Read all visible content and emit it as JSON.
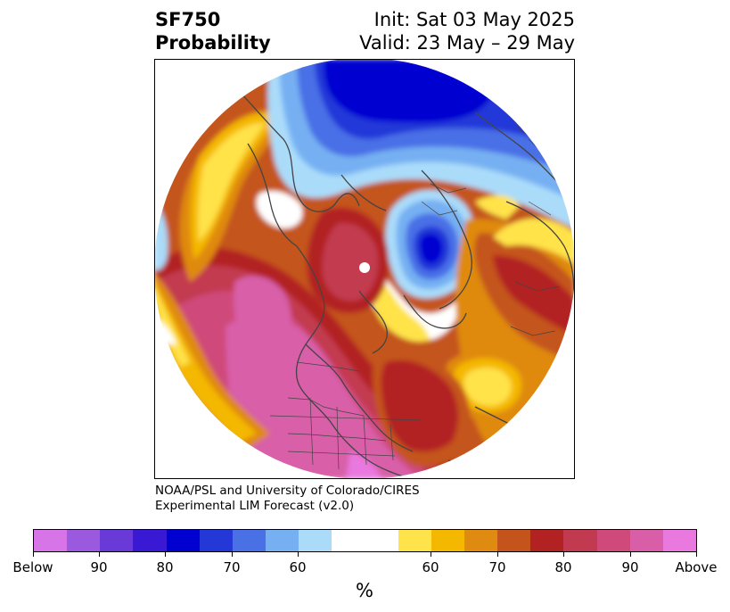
{
  "title": {
    "left_line1": "SF750",
    "left_line2": "Probability",
    "right_line1": "Init: Sat 03 May 2025",
    "right_line2": "Valid: 23 May – 29 May"
  },
  "credit": {
    "line1": "NOAA/PSL and University of Colorado/CIRES",
    "line2": "Experimental LIM Forecast (v2.0)"
  },
  "colorbar": {
    "label": "%",
    "colors": [
      "#d674e8",
      "#9b59e0",
      "#6a3ad8",
      "#3a19d4",
      "#0000d0",
      "#2438d8",
      "#4a70e6",
      "#76b0f2",
      "#aadcfa",
      "#ffffff",
      "#ffe34a",
      "#f4b800",
      "#df8a10",
      "#c4541c",
      "#b22222",
      "#c23a50",
      "#cf4a7a",
      "#d85ea8",
      "#e978df"
    ],
    "ticks": [
      "Below",
      "90",
      "80",
      "70",
      "60",
      "60",
      "70",
      "80",
      "90",
      "Above"
    ]
  },
  "map": {
    "projection": "north-polar-stereographic",
    "features": [
      "coastlines",
      "country-borders",
      "us-state-borders"
    ]
  }
}
